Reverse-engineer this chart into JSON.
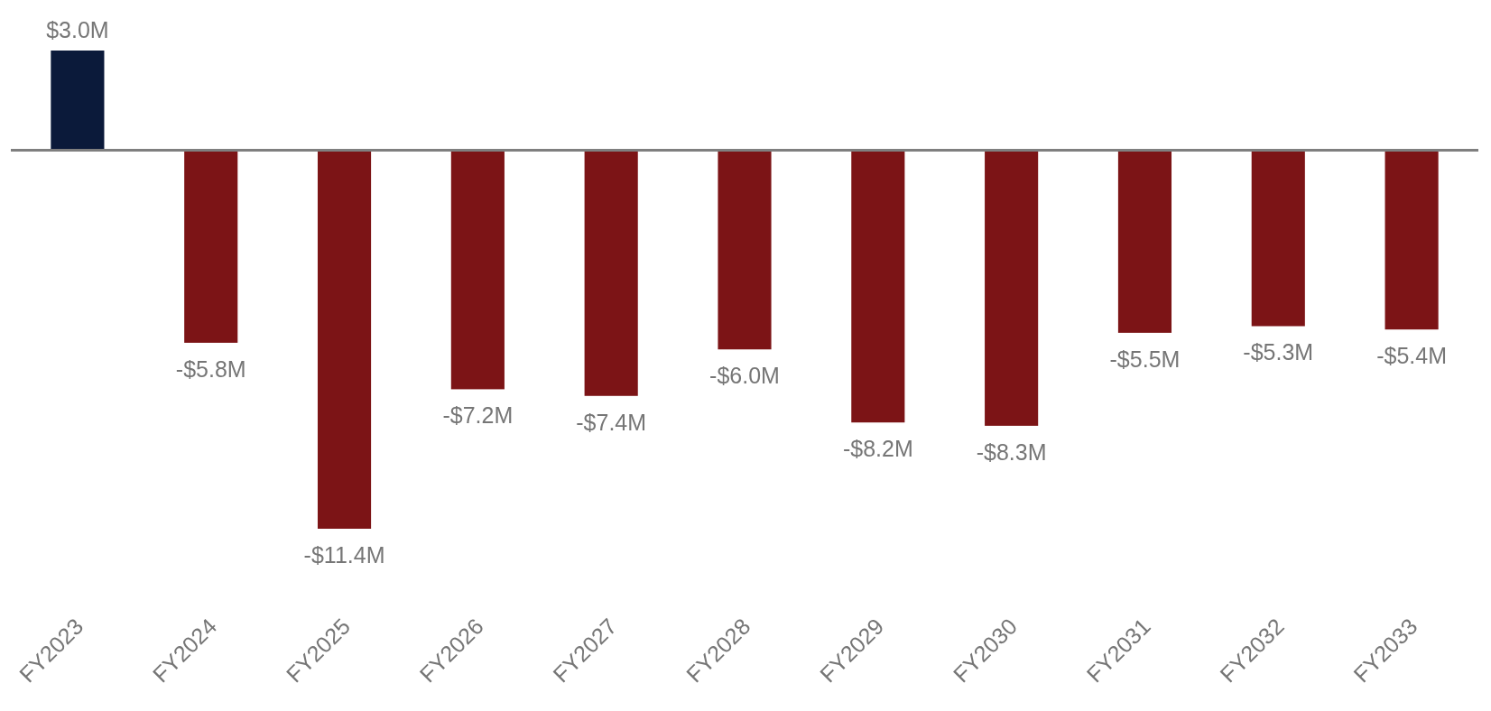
{
  "chart_data": {
    "type": "bar",
    "categories": [
      "FY2023",
      "FY2024",
      "FY2025",
      "FY2026",
      "FY2027",
      "FY2028",
      "FY2029",
      "FY2030",
      "FY2031",
      "FY2032",
      "FY2033"
    ],
    "values": [
      3.0,
      -5.8,
      -11.4,
      -7.2,
      -7.4,
      -6.0,
      -8.2,
      -8.3,
      -5.5,
      -5.3,
      -5.4
    ],
    "colors": [
      "#0b1a3a",
      "#7c1416",
      "#7c1416",
      "#7c1416",
      "#7c1416",
      "#7c1416",
      "#7c1416",
      "#7c1416",
      "#7c1416",
      "#7c1416",
      "#7c1416"
    ],
    "value_labels": [
      "$3.0M",
      "-$5.8M",
      "-$11.4M",
      "-$7.2M",
      "-$7.4M",
      "-$6.0M",
      "-$8.2M",
      "-$8.3M",
      "-$5.5M",
      "-$5.3M",
      "-$5.4M"
    ]
  }
}
